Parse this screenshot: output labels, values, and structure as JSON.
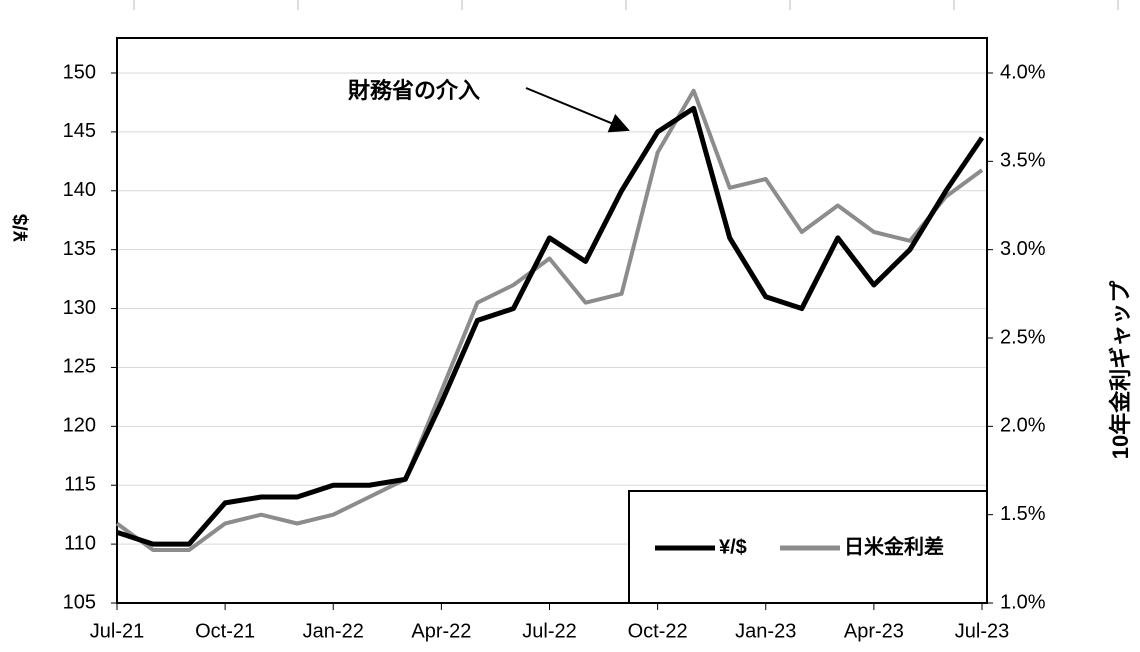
{
  "chart_data": {
    "type": "line",
    "annotation": "財務省の介入",
    "y_label": "¥/$",
    "y2_label": "10年金利ギャップ",
    "categories": [
      "Jul-21",
      null,
      null,
      "Oct-21",
      null,
      null,
      "Jan-22",
      null,
      null,
      "Apr-22",
      null,
      null,
      "Jul-22",
      null,
      null,
      "Oct-22",
      null,
      null,
      "Jan-23",
      null,
      null,
      "Apr-23",
      null,
      null,
      "Jul-23"
    ],
    "series": [
      {
        "name": "¥/$",
        "color": "#000000",
        "values": [
          111,
          110,
          110,
          113.5,
          114,
          114,
          115,
          115,
          115.5,
          122,
          129,
          130,
          136,
          134,
          140,
          145,
          147,
          136,
          131,
          130,
          136,
          132,
          135,
          140,
          144.5
        ]
      },
      {
        "name": "日米金利差",
        "color": "#8c8c8c",
        "axis": "y2",
        "values": [
          1.45,
          1.3,
          1.3,
          1.45,
          1.5,
          1.45,
          1.5,
          1.6,
          1.7,
          2.2,
          2.7,
          2.8,
          2.95,
          2.7,
          2.75,
          3.55,
          3.9,
          3.35,
          3.4,
          3.1,
          3.25,
          3.1,
          3.05,
          3.3,
          3.45
        ]
      }
    ],
    "ylim": [
      105,
      150
    ],
    "yticks": [
      105,
      110,
      115,
      120,
      125,
      130,
      135,
      140,
      145,
      150
    ],
    "y2lim": [
      1.0,
      4.0
    ],
    "y2ticks": [
      {
        "value": 1.0,
        "label": "1.0%"
      },
      {
        "value": 1.5,
        "label": "1.5%"
      },
      {
        "value": 2.0,
        "label": "2.0%"
      },
      {
        "value": 2.5,
        "label": "2.5%"
      },
      {
        "value": 3.0,
        "label": "3.0%"
      },
      {
        "value": 3.5,
        "label": "3.5%"
      },
      {
        "value": 4.0,
        "label": "4.0%"
      }
    ],
    "grid": true,
    "legend": "lower right"
  }
}
